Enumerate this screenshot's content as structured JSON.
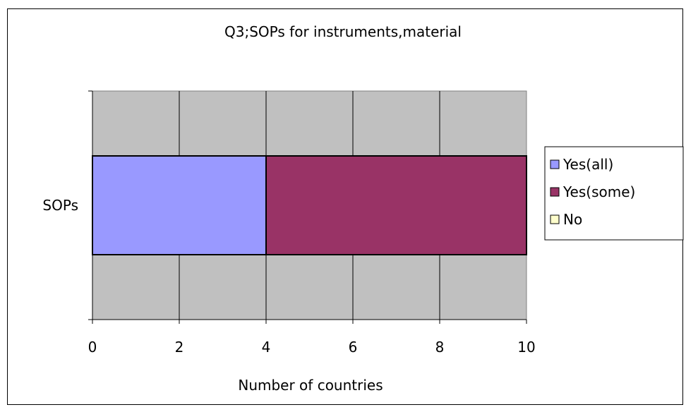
{
  "chart_data": {
    "type": "bar",
    "orientation": "horizontal",
    "stacked": true,
    "title": "Q3;SOPs for instruments,material",
    "xlabel": "Number of countries",
    "ylabel": "",
    "categories": [
      "SOPs"
    ],
    "series": [
      {
        "name": "Yes(all)",
        "values": [
          4
        ],
        "color": "#9999ff"
      },
      {
        "name": "Yes(some)",
        "values": [
          6
        ],
        "color": "#993366"
      },
      {
        "name": "No",
        "values": [
          0
        ],
        "color": "#ffffcc"
      }
    ],
    "xlim": [
      0,
      10
    ],
    "xticks": [
      "0",
      "2",
      "4",
      "6",
      "8",
      "10"
    ],
    "grid": true,
    "plot_background": "#c0c0c0",
    "legend_position": "right"
  }
}
